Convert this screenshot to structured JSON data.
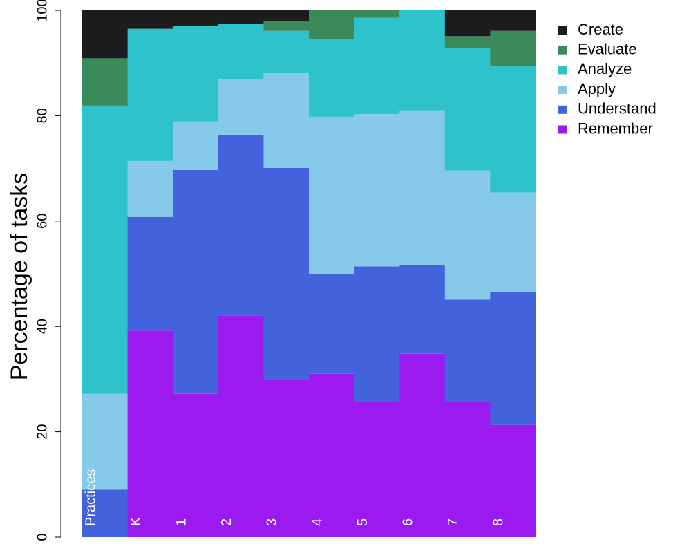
{
  "chart_data": {
    "type": "stacked_bar",
    "y_label": "Percentage of tasks",
    "categories": [
      "Practices",
      "K",
      "1",
      "2",
      "3",
      "4",
      "5",
      "6",
      "7",
      "8"
    ],
    "series": [
      {
        "name": "Remember",
        "color": "#9a1af0",
        "values": [
          0,
          39.2,
          27.2,
          42.1,
          29.9,
          31,
          25.7,
          34.8,
          25.6,
          21.3
        ]
      },
      {
        "name": "Understand",
        "color": "#4363dd",
        "values": [
          9,
          21.6,
          42.5,
          34.3,
          40.2,
          19,
          25.7,
          16.9,
          19.5,
          25.3
        ]
      },
      {
        "name": "Apply",
        "color": "#87c9e8",
        "values": [
          18.2,
          10.6,
          9.2,
          10.5,
          18,
          29.8,
          28.9,
          29.3,
          24.5,
          18.8
        ]
      },
      {
        "name": "Analyze",
        "color": "#2ec3ca",
        "values": [
          54.7,
          25.1,
          18.1,
          10.6,
          8,
          14.8,
          18.3,
          19,
          23.2,
          24
        ]
      },
      {
        "name": "Evaluate",
        "color": "#3a8a5a",
        "values": [
          9,
          0,
          0,
          0,
          1.9,
          5.4,
          1.4,
          0,
          2.3,
          6.7
        ]
      },
      {
        "name": "Create",
        "color": "#1c1c1c",
        "values": [
          9.1,
          3.5,
          3,
          2.5,
          2,
          0,
          0,
          0,
          4.9,
          3.9
        ]
      }
    ],
    "ylim": [
      0,
      100
    ],
    "yticks": [
      0,
      20,
      40,
      60,
      80,
      100
    ],
    "legend": "top-right",
    "legend_order": "reversed"
  }
}
